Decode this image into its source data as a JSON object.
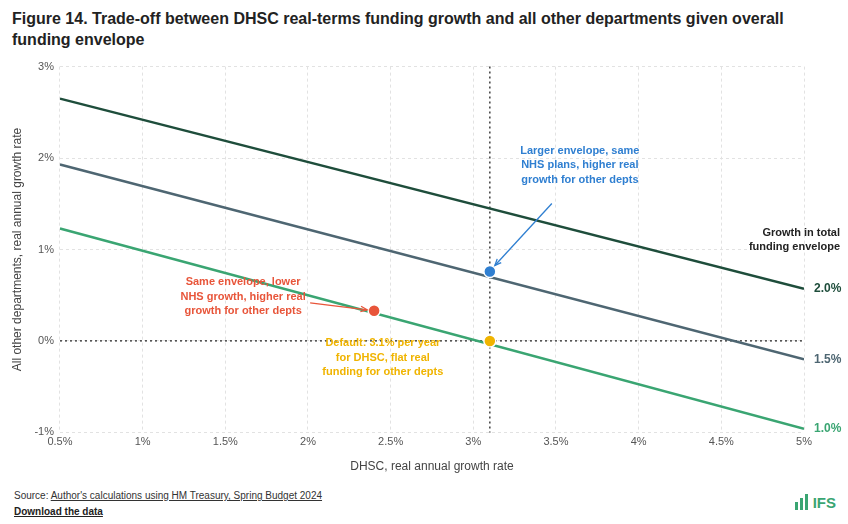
{
  "chart_data": {
    "type": "line",
    "title": "Figure 14. Trade-off between DHSC real-terms funding growth and all other departments given overall funding envelope",
    "x_label": "DHSC, real annual growth rate",
    "y_label": "All other departments, real annual growth rate",
    "x": [
      0.5,
      5
    ],
    "xlim": [
      0.5,
      5
    ],
    "xticks": [
      {
        "value": 0.5,
        "label": "0.5%"
      },
      {
        "value": 1,
        "label": "1%"
      },
      {
        "value": 1.5,
        "label": "1.5%"
      },
      {
        "value": 2,
        "label": "2%"
      },
      {
        "value": 2.5,
        "label": "2.5%"
      },
      {
        "value": 3,
        "label": "3%"
      },
      {
        "value": 3.5,
        "label": "3.5%"
      },
      {
        "value": 4,
        "label": "4%"
      },
      {
        "value": 4.5,
        "label": "4.5%"
      },
      {
        "value": 5,
        "label": "5%"
      }
    ],
    "ylim": [
      -1,
      3
    ],
    "yticks": [
      {
        "value": -1,
        "label": "-1%"
      },
      {
        "value": 0,
        "label": "0%"
      },
      {
        "value": 1,
        "label": "1%"
      },
      {
        "value": 2,
        "label": "2%"
      },
      {
        "value": 3,
        "label": "3%"
      }
    ],
    "grid": true,
    "legend_title": "Growth in total funding envelope",
    "series": [
      {
        "name": "2.0%",
        "color": "#1e4d3b",
        "type": "line",
        "line_style": "solid",
        "values": [
          2.65,
          0.57
        ]
      },
      {
        "name": "1.5%",
        "color": "#4e6672",
        "type": "line",
        "line_style": "solid",
        "values": [
          1.93,
          -0.2
        ]
      },
      {
        "name": "1.0%",
        "color": "#3aa572",
        "type": "line",
        "line_style": "solid",
        "values": [
          1.23,
          -0.96
        ]
      }
    ],
    "points": [
      {
        "x": 3.1,
        "y": 0.76,
        "color": "#2f7fd1",
        "marker": "circle",
        "label": [
          "Larger envelope, same",
          "NHS plans, higher real",
          "growth for other depts"
        ]
      },
      {
        "x": 2.4,
        "y": 0.33,
        "color": "#e8553a",
        "marker": "circle",
        "label": [
          "Same envelope, lower",
          "NHS growth, higher real",
          "growth for other depts"
        ]
      },
      {
        "x": 3.1,
        "y": 0,
        "color": "#f0b400",
        "marker": "circle",
        "label": [
          "Default: 3.1% per year",
          "for DHSC, flat real",
          "funding for other depts"
        ]
      }
    ],
    "reference_lines": {
      "x": [
        3.1
      ],
      "y": [
        0
      ]
    },
    "source": "Source: Author's calculations using HM Treasury, Spring Budget 2024",
    "download": "Download the data",
    "logo": "IFS"
  }
}
